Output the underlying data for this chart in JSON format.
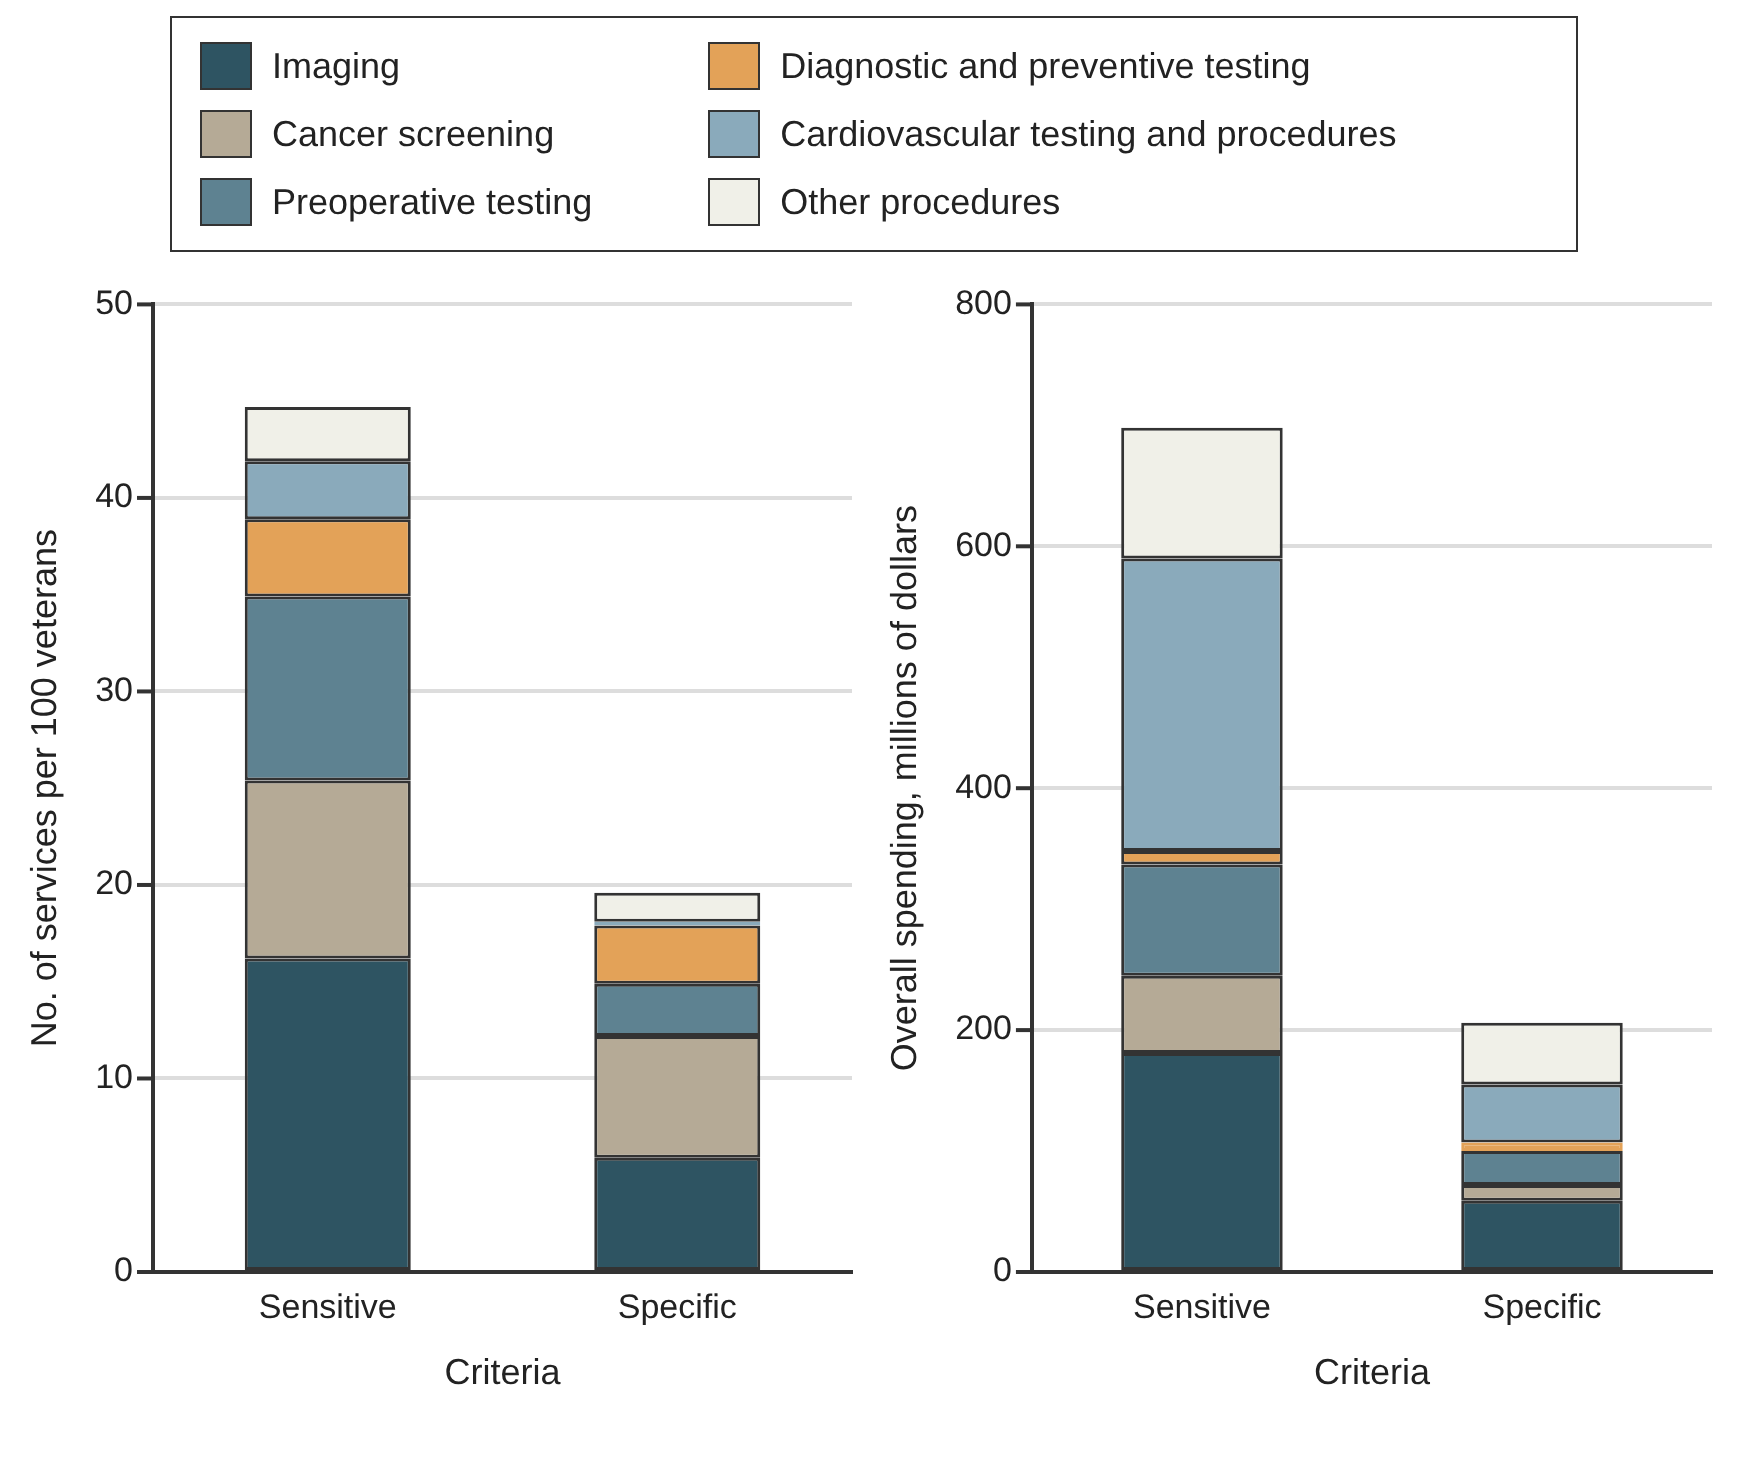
{
  "chart_data": [
    {
      "type": "bar",
      "stacked": true,
      "legend": "top",
      "grid": "y",
      "xlabel": "Criteria",
      "ylabel": "No. of services per 100 veterans",
      "categories": [
        "Sensitive",
        "Specific"
      ],
      "ylim": [
        0,
        50
      ],
      "yticks": [
        0,
        10,
        20,
        30,
        40,
        50
      ],
      "series": [
        {
          "name": "Imaging",
          "color": "#2e5462",
          "values": [
            16.2,
            5.9
          ]
        },
        {
          "name": "Cancer screening",
          "color": "#b5aa96",
          "values": [
            9.2,
            6.3
          ]
        },
        {
          "name": "Preoperative testing",
          "color": "#5e8291",
          "values": [
            9.5,
            2.7
          ]
        },
        {
          "name": "Diagnostic and preventive testing",
          "color": "#e3a258",
          "values": [
            4.0,
            3.0
          ]
        },
        {
          "name": "Cardiovascular testing and procedures",
          "color": "#8aaabb",
          "values": [
            3.0,
            0.2
          ]
        },
        {
          "name": "Other procedures",
          "color": "#f0f0e8",
          "values": [
            2.8,
            1.5
          ]
        }
      ]
    },
    {
      "type": "bar",
      "stacked": true,
      "grid": "y",
      "xlabel": "Criteria",
      "ylabel": "Overall spending, millions of dollars",
      "categories": [
        "Sensitive",
        "Specific"
      ],
      "ylim": [
        0,
        800
      ],
      "yticks": [
        0,
        200,
        400,
        600,
        800
      ],
      "series": [
        {
          "name": "Imaging",
          "color": "#2e5462",
          "values": [
            181,
            59
          ]
        },
        {
          "name": "Cancer screening",
          "color": "#b5aa96",
          "values": [
            64,
            13
          ]
        },
        {
          "name": "Preoperative testing",
          "color": "#5e8291",
          "values": [
            92,
            28
          ]
        },
        {
          "name": "Diagnostic and preventive testing",
          "color": "#e3a258",
          "values": [
            11,
            7
          ]
        },
        {
          "name": "Cardiovascular testing and procedures",
          "color": "#8aaabb",
          "values": [
            242,
            48
          ]
        },
        {
          "name": "Other procedures",
          "color": "#f0f0e8",
          "values": [
            108,
            51
          ]
        }
      ]
    }
  ]
}
